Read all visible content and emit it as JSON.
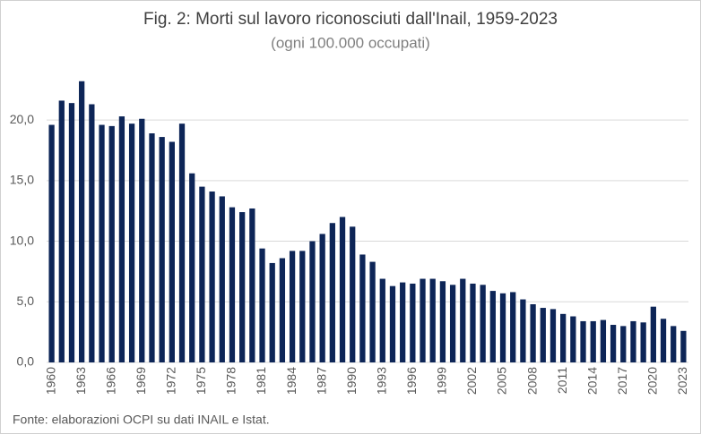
{
  "chart_data": {
    "type": "bar",
    "title": "Fig. 2: Morti sul lavoro riconosciuti dall'Inail, 1959-2023",
    "subtitle": "(ogni 100.000 occupati)",
    "source": "Fonte: elaborazioni OCPI su dati INAIL e Istat.",
    "categories": [
      "1960",
      null,
      null,
      "1963",
      null,
      null,
      "1966",
      null,
      null,
      "1969",
      null,
      null,
      "1972",
      null,
      null,
      "1975",
      null,
      null,
      "1978",
      null,
      null,
      "1981",
      null,
      null,
      "1984",
      null,
      null,
      "1987",
      null,
      null,
      "1990",
      null,
      null,
      "1993",
      null,
      null,
      "1996",
      null,
      null,
      "1999",
      null,
      null,
      "2002",
      null,
      null,
      "2005",
      null,
      null,
      "2008",
      null,
      null,
      "2011",
      null,
      null,
      "2014",
      null,
      null,
      "2017",
      null,
      null,
      "2020",
      null,
      null,
      "2023"
    ],
    "values": [
      19.6,
      21.6,
      21.4,
      23.2,
      21.3,
      19.6,
      19.5,
      20.3,
      19.7,
      20.1,
      18.9,
      18.6,
      18.2,
      19.7,
      15.6,
      14.5,
      14.1,
      13.7,
      12.8,
      12.4,
      12.7,
      9.4,
      8.2,
      8.6,
      9.2,
      9.2,
      10.0,
      10.6,
      11.5,
      12.0,
      11.2,
      8.9,
      8.3,
      6.9,
      6.3,
      6.6,
      6.5,
      6.9,
      6.9,
      6.7,
      6.4,
      6.9,
      6.5,
      6.4,
      5.9,
      5.7,
      5.8,
      5.2,
      4.8,
      4.5,
      4.4,
      4.0,
      3.8,
      3.4,
      3.4,
      3.5,
      3.1,
      3.0,
      3.4,
      3.3,
      4.6,
      3.6,
      3.0,
      2.6
    ],
    "color": "#0d2557",
    "ylim": [
      0,
      23.7
    ],
    "yticks": [
      {
        "value": 0,
        "label": "0,0"
      },
      {
        "value": 5,
        "label": "5,0"
      },
      {
        "value": 10,
        "label": "10,0"
      },
      {
        "value": 15,
        "label": "15,0"
      },
      {
        "value": 20,
        "label": "20,0"
      }
    ],
    "grid": true
  }
}
